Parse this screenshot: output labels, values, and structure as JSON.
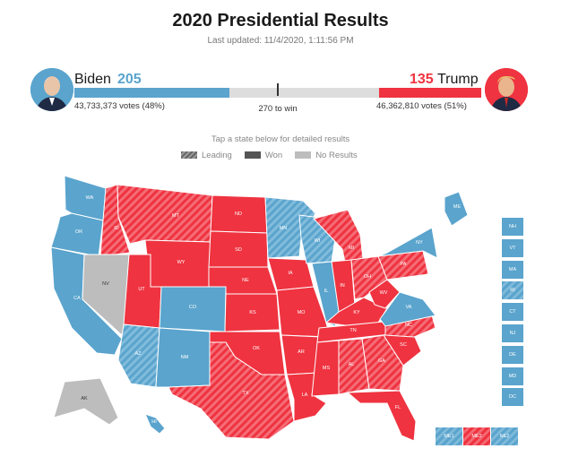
{
  "header": {
    "title": "2020 Presidential Results",
    "updated": "Last updated: 11/4/2020, 1:11:56 PM"
  },
  "candidates": {
    "biden": {
      "name": "Biden",
      "electoral_votes": "205",
      "votes": "43,733,373 votes (48%)",
      "color": "#5aa4cd",
      "avatar_icon": "biden-portrait-icon",
      "ev_share": 0.381
    },
    "trump": {
      "name": "Trump",
      "electoral_votes": "135",
      "votes": "46,362,810 votes (51%)",
      "color": "#ef3340",
      "avatar_icon": "trump-portrait-icon",
      "ev_share": 0.251
    }
  },
  "to_win": "270 to win",
  "instructions": "Tap a state below for detailed results",
  "legend": {
    "leading": "Leading",
    "won": "Won",
    "no_results": "No Results"
  },
  "colors": {
    "dem": "#5aa4cd",
    "rep": "#ef3340",
    "no_results": "#bdbdbd"
  },
  "states": [
    {
      "abbr": "WA",
      "status": "dem-won"
    },
    {
      "abbr": "OR",
      "status": "dem-won"
    },
    {
      "abbr": "CA",
      "status": "dem-won"
    },
    {
      "abbr": "ID",
      "status": "rep-lead"
    },
    {
      "abbr": "NV",
      "status": "none"
    },
    {
      "abbr": "MT",
      "status": "rep-lead"
    },
    {
      "abbr": "WY",
      "status": "rep-won"
    },
    {
      "abbr": "UT",
      "status": "rep-won"
    },
    {
      "abbr": "CO",
      "status": "dem-won"
    },
    {
      "abbr": "AZ",
      "status": "dem-lead"
    },
    {
      "abbr": "NM",
      "status": "dem-won"
    },
    {
      "abbr": "ND",
      "status": "rep-won"
    },
    {
      "abbr": "SD",
      "status": "rep-won"
    },
    {
      "abbr": "NE",
      "status": "rep-won"
    },
    {
      "abbr": "KS",
      "status": "rep-won"
    },
    {
      "abbr": "OK",
      "status": "rep-won"
    },
    {
      "abbr": "TX",
      "status": "rep-lead"
    },
    {
      "abbr": "MN",
      "status": "dem-lead"
    },
    {
      "abbr": "IA",
      "status": "rep-won"
    },
    {
      "abbr": "MO",
      "status": "rep-won"
    },
    {
      "abbr": "AR",
      "status": "rep-won"
    },
    {
      "abbr": "LA",
      "status": "rep-won"
    },
    {
      "abbr": "WI",
      "status": "dem-lead"
    },
    {
      "abbr": "IL",
      "status": "dem-won"
    },
    {
      "abbr": "MI",
      "status": "rep-lead"
    },
    {
      "abbr": "IN",
      "status": "rep-won"
    },
    {
      "abbr": "OH",
      "status": "rep-lead"
    },
    {
      "abbr": "KY",
      "status": "rep-won"
    },
    {
      "abbr": "TN",
      "status": "rep-won"
    },
    {
      "abbr": "MS",
      "status": "rep-won"
    },
    {
      "abbr": "AL",
      "status": "rep-lead"
    },
    {
      "abbr": "GA",
      "status": "rep-lead"
    },
    {
      "abbr": "FL",
      "status": "rep-won"
    },
    {
      "abbr": "SC",
      "status": "rep-won"
    },
    {
      "abbr": "NC",
      "status": "rep-lead"
    },
    {
      "abbr": "VA",
      "status": "dem-won"
    },
    {
      "abbr": "WV",
      "status": "rep-won"
    },
    {
      "abbr": "PA",
      "status": "rep-lead"
    },
    {
      "abbr": "NY",
      "status": "dem-won"
    },
    {
      "abbr": "ME",
      "status": "dem-won"
    },
    {
      "abbr": "AK",
      "status": "none"
    },
    {
      "abbr": "HI",
      "status": "dem-won"
    }
  ],
  "small_states": [
    {
      "abbr": "NH",
      "status": "dem-won"
    },
    {
      "abbr": "VT",
      "status": "dem-won"
    },
    {
      "abbr": "MA",
      "status": "dem-won"
    },
    {
      "abbr": "RI",
      "status": "dem-lead"
    },
    {
      "abbr": "CT",
      "status": "dem-won"
    },
    {
      "abbr": "NJ",
      "status": "dem-won"
    },
    {
      "abbr": "DE",
      "status": "dem-won"
    },
    {
      "abbr": "MD",
      "status": "dem-won"
    },
    {
      "abbr": "DC",
      "status": "dem-won"
    }
  ],
  "maine_districts": [
    {
      "abbr": "ME1",
      "status": "dem-lead"
    },
    {
      "abbr": "ME2",
      "status": "rep-lead"
    },
    {
      "abbr": "NE2",
      "status": "dem-lead"
    }
  ]
}
